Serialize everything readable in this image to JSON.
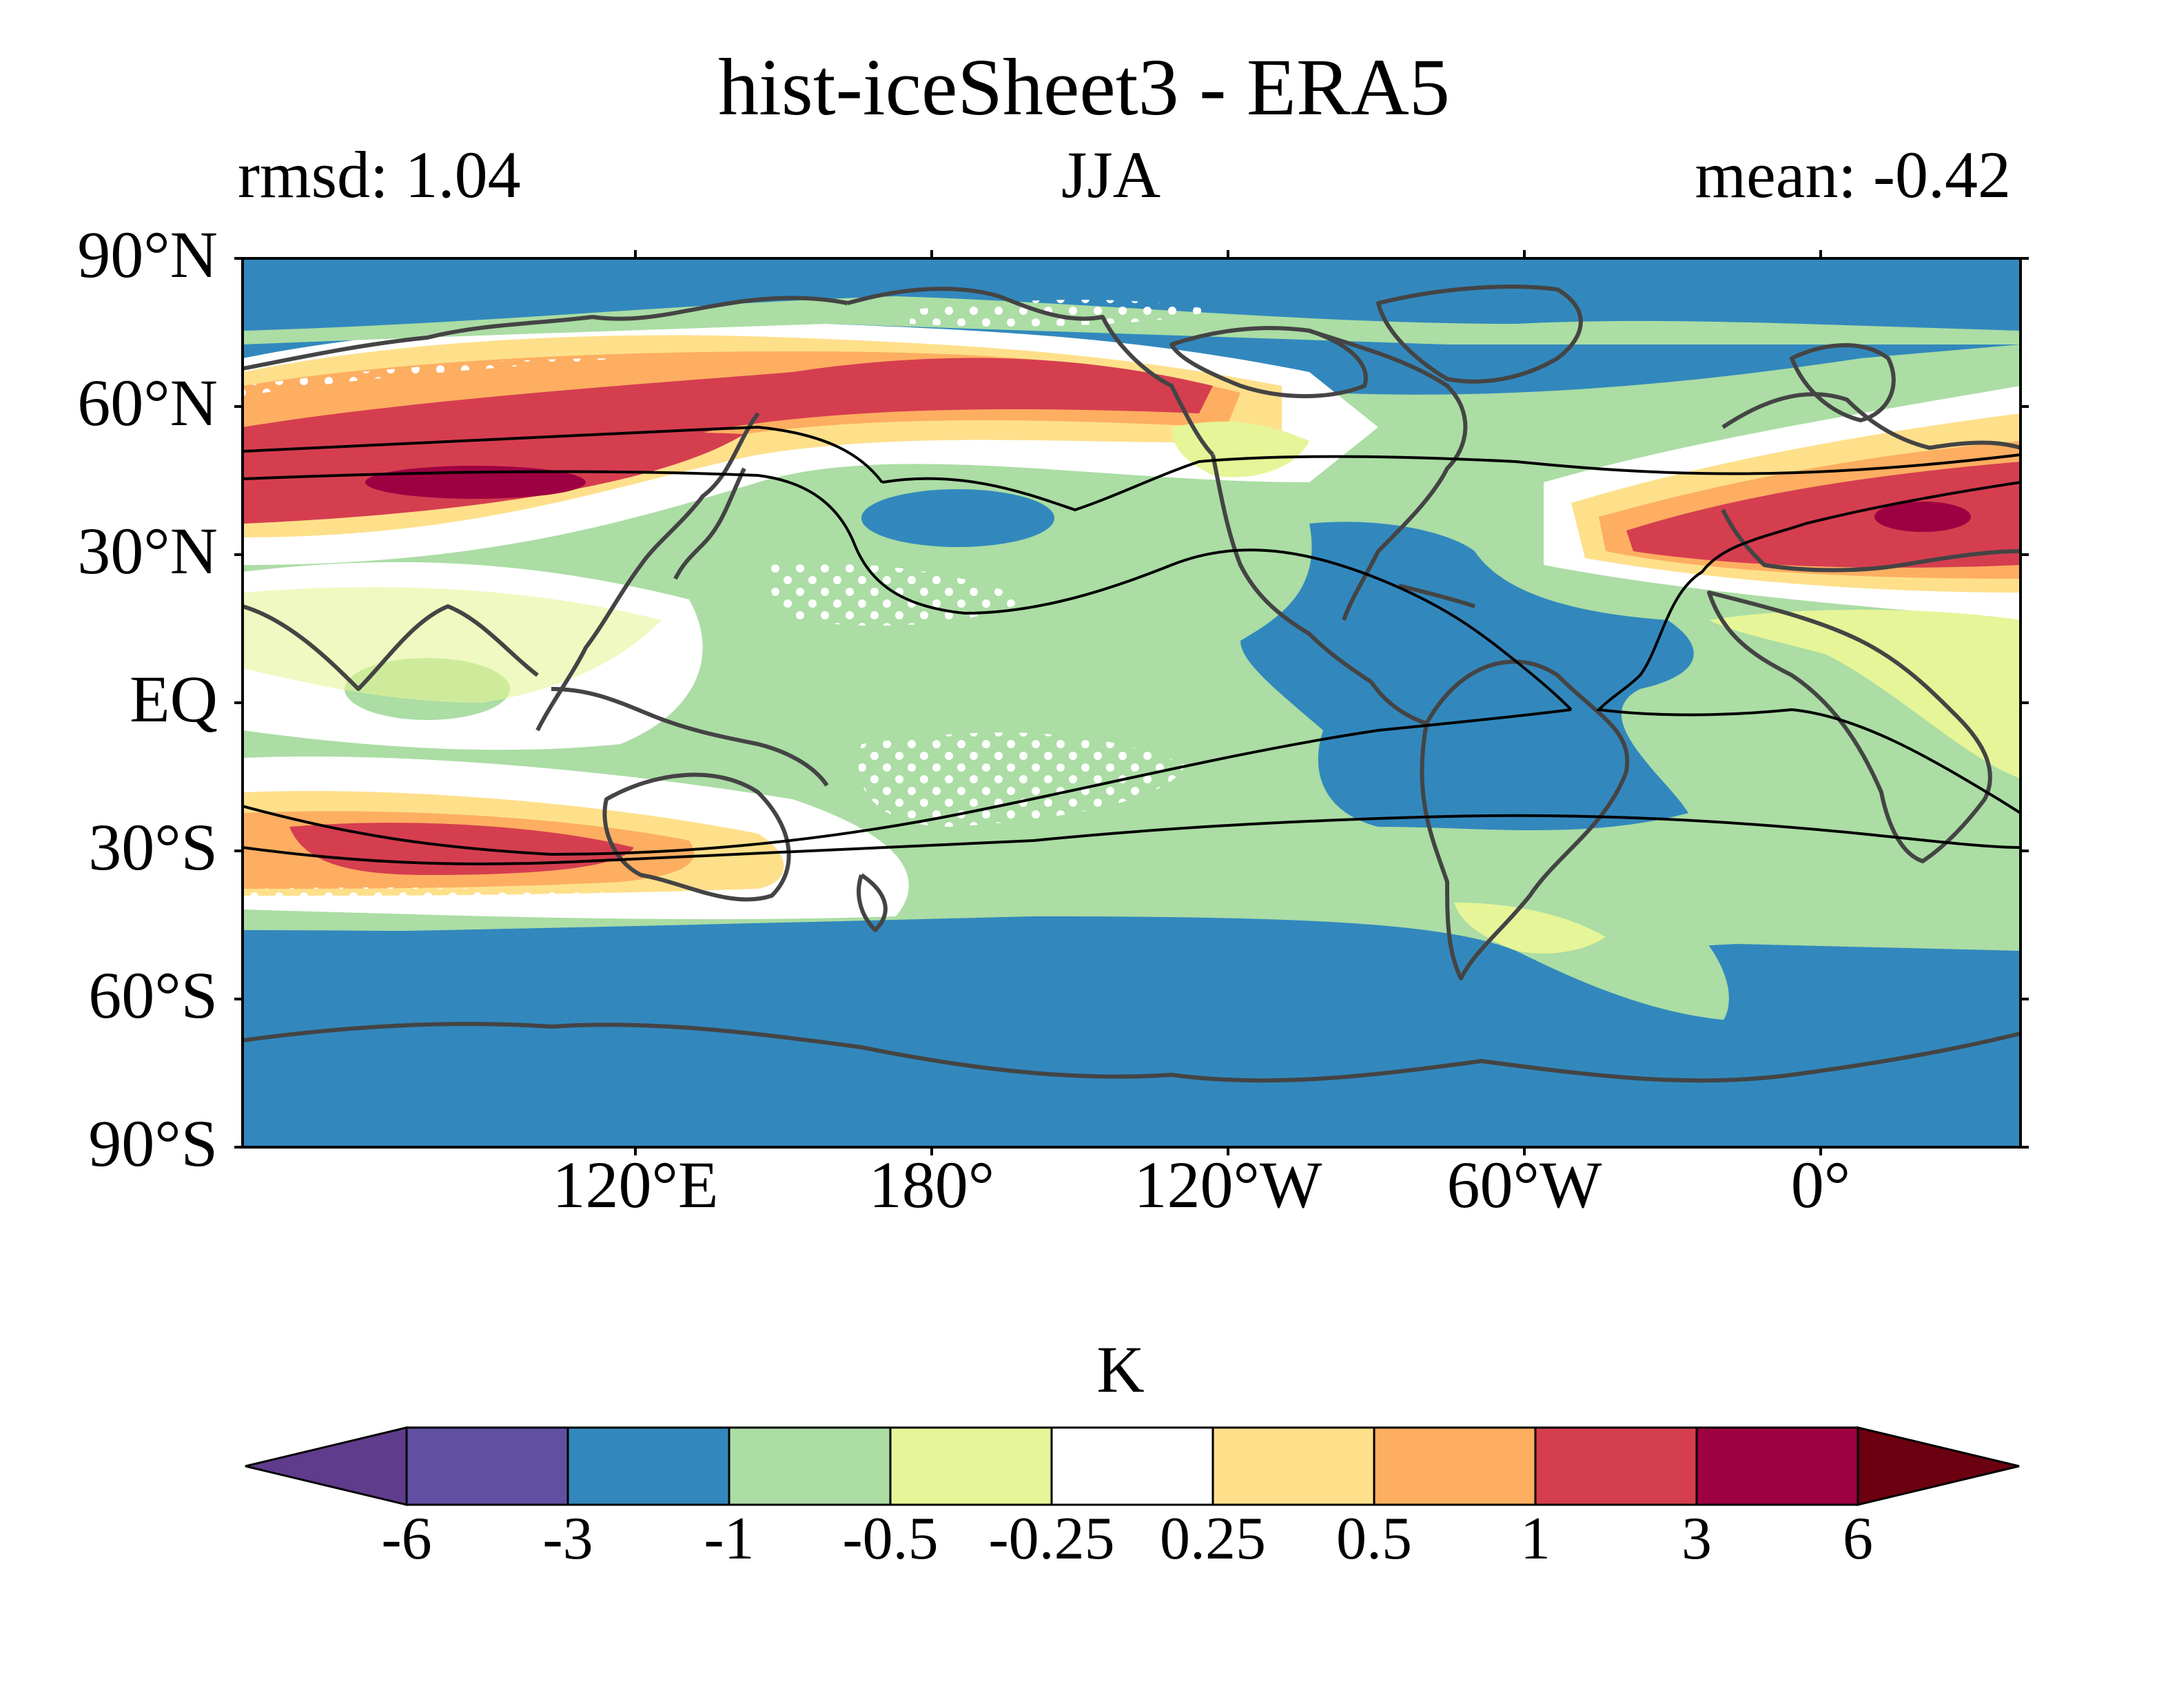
{
  "figure": {
    "title": "hist-iceSheet3 - ERA5",
    "left_label": "rmsd: 1.04",
    "center_label": "JJA",
    "right_label": "mean: -0.42"
  },
  "map": {
    "projection": "PlateCarree, central_longitude 180",
    "lat_ticks": [
      "90°N",
      "60°N",
      "30°N",
      "EQ",
      "30°S",
      "60°S",
      "90°S"
    ],
    "lon_ticks": [
      "120°E",
      "180°",
      "120°W",
      "60°W",
      "0°"
    ],
    "stippling": "white dots mark regions of significant difference"
  },
  "colorbar": {
    "unit": "K",
    "levels": [
      "-6",
      "-3",
      "-1",
      "-0.5",
      "-0.25",
      "0.25",
      "0.5",
      "1",
      "3",
      "6"
    ],
    "colors": [
      "#5f3c8c",
      "#6150a2",
      "#3288bd",
      "#abdda4",
      "#e6f598",
      "#ffffff",
      "#fee08b",
      "#fdae61",
      "#d53e4f",
      "#9e0142",
      "#6b0010"
    ]
  },
  "colors": {
    "background_field": "#3288bd",
    "coastline": "#444444",
    "contour": "#000000"
  }
}
